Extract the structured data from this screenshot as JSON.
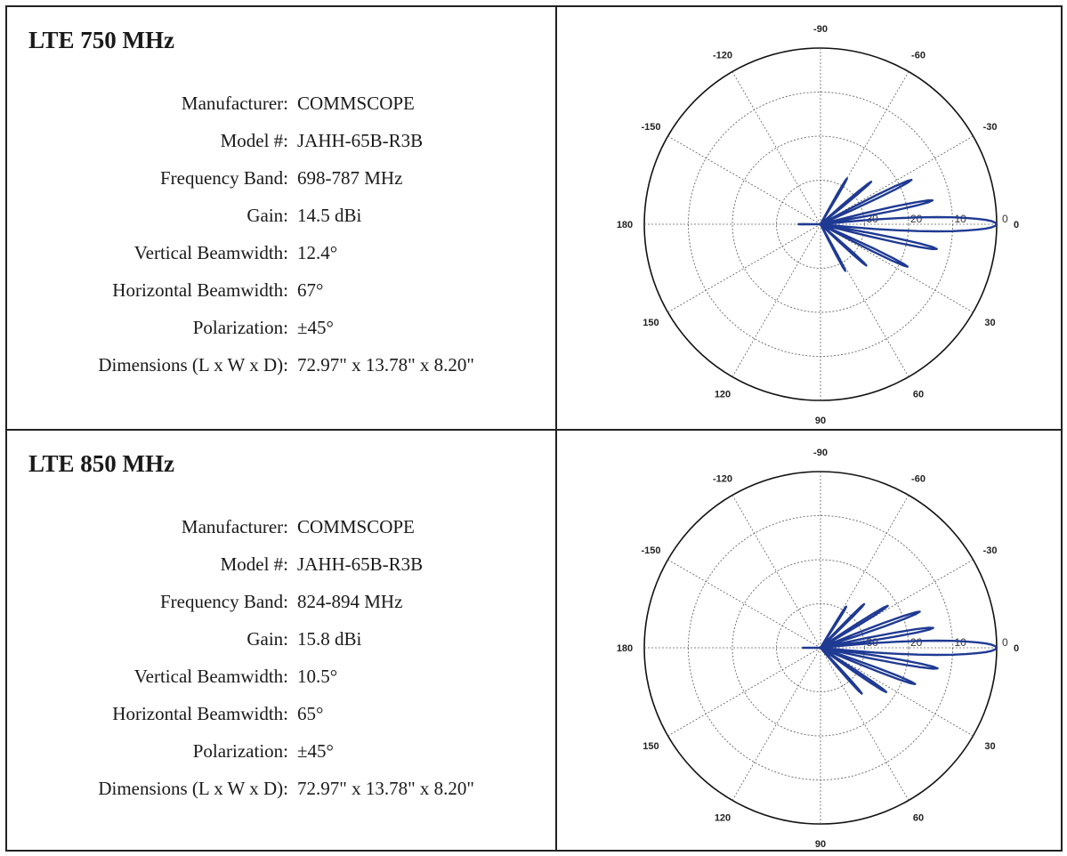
{
  "rows": [
    {
      "title": "LTE 750 MHz",
      "specs": [
        {
          "label": "Manufacturer:",
          "value": "COMMSCOPE"
        },
        {
          "label": "Model #:",
          "value": "JAHH-65B-R3B"
        },
        {
          "label": "Frequency Band:",
          "value": "698-787 MHz"
        },
        {
          "label": "Gain:",
          "value": "14.5 dBi"
        },
        {
          "label": "Vertical Beamwidth:",
          "value": "12.4°"
        },
        {
          "label": "Horizontal Beamwidth:",
          "value": "67°"
        },
        {
          "label": "Polarization:",
          "value": "±45°"
        },
        {
          "label": "Dimensions (L x W x D):",
          "value": "72.97\" x 13.78\" x 8.20\""
        }
      ]
    },
    {
      "title": "LTE 850 MHz",
      "specs": [
        {
          "label": "Manufacturer:",
          "value": "COMMSCOPE"
        },
        {
          "label": "Model #:",
          "value": "JAHH-65B-R3B"
        },
        {
          "label": "Frequency Band:",
          "value": "824-894 MHz"
        },
        {
          "label": "Gain:",
          "value": "15.8 dBi"
        },
        {
          "label": "Vertical Beamwidth:",
          "value": "10.5°"
        },
        {
          "label": "Horizontal Beamwidth:",
          "value": "65°"
        },
        {
          "label": "Polarization:",
          "value": "±45°"
        },
        {
          "label": "Dimensions (L x W x D):",
          "value": "72.97\" x 13.78\" x 8.20\""
        }
      ]
    }
  ],
  "chart_data": [
    {
      "type": "line",
      "angle_labels": [
        "-90",
        "-60",
        "-30",
        "0",
        "30",
        "60",
        "90",
        "120",
        "150",
        "180",
        "-150",
        "-120"
      ],
      "ring_labels": [
        "30",
        "20",
        "10",
        "0"
      ],
      "series_color": "#1f3a93",
      "main_lobe": {
        "angle_deg": 0,
        "level_db": 0
      },
      "side_lobes": [
        {
          "angle_deg": -12,
          "level_db": -14
        },
        {
          "angle_deg": -26,
          "level_db": -17
        },
        {
          "angle_deg": -40,
          "level_db": -25
        },
        {
          "angle_deg": -60,
          "level_db": -28
        },
        {
          "angle_deg": 12,
          "level_db": -13
        },
        {
          "angle_deg": 26,
          "level_db": -18
        },
        {
          "angle_deg": 42,
          "level_db": -26
        },
        {
          "angle_deg": 62,
          "level_db": -28
        },
        {
          "angle_deg": 180,
          "level_db": -35
        }
      ]
    },
    {
      "type": "line",
      "angle_labels": [
        "-90",
        "-60",
        "-30",
        "0",
        "30",
        "60",
        "90",
        "120",
        "150",
        "180",
        "-150",
        "-120"
      ],
      "ring_labels": [
        "30",
        "20",
        "10",
        "0"
      ],
      "series_color": "#1f3a93",
      "main_lobe": {
        "angle_deg": 0,
        "level_db": 0
      },
      "side_lobes": [
        {
          "angle_deg": -10,
          "level_db": -14
        },
        {
          "angle_deg": -20,
          "level_db": -16
        },
        {
          "angle_deg": -32,
          "level_db": -22
        },
        {
          "angle_deg": -45,
          "level_db": -26
        },
        {
          "angle_deg": -58,
          "level_db": -29
        },
        {
          "angle_deg": 10,
          "level_db": -13
        },
        {
          "angle_deg": 21,
          "level_db": -17
        },
        {
          "angle_deg": 34,
          "level_db": -22
        },
        {
          "angle_deg": 48,
          "level_db": -26
        },
        {
          "angle_deg": 180,
          "level_db": -36
        }
      ]
    }
  ]
}
